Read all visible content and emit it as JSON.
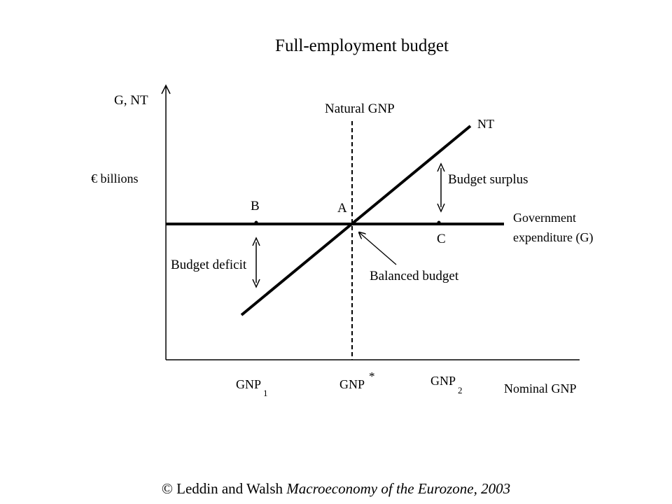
{
  "title": "Full-employment budget",
  "y_axis": {
    "label": "G, NT",
    "unit": "€ billions"
  },
  "x_axis": {
    "label": "Nominal GNP"
  },
  "x_ticks": [
    {
      "name": "gnp1",
      "base": "GNP",
      "sub": "1"
    },
    {
      "name": "gnp-star",
      "base": "GNP",
      "sup": "*"
    },
    {
      "name": "gnp2",
      "base": "GNP",
      "sub": "2"
    }
  ],
  "natural_gnp_label": "Natural GNP",
  "lines": {
    "nt": "NT",
    "g_line1": "Government",
    "g_line2": "expenditure (G)"
  },
  "points": {
    "a": "A",
    "b": "B",
    "c": "C"
  },
  "annotations": {
    "surplus": "Budget surplus",
    "deficit": "Budget deficit",
    "balanced": "Balanced budget"
  },
  "footer": {
    "symbol": "©",
    "authors": "Leddin and Walsh",
    "book": "Macroeconomy of the Eurozone, 2003"
  }
}
